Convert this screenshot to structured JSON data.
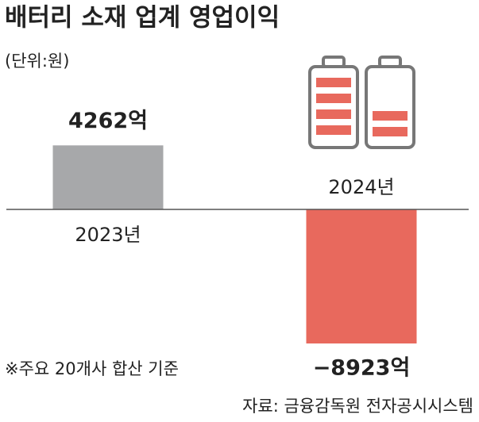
{
  "chart_data": {
    "type": "bar",
    "title": "배터리 소재 업계 영업이익",
    "subtitle": "(단위:원)",
    "categories": [
      "2023년",
      "2024년"
    ],
    "values": [
      4262,
      -8923
    ],
    "value_labels": [
      "4262억",
      "−8923억"
    ],
    "colors": [
      "#a7a8aa",
      "#e8695d"
    ],
    "note": "※주요 20개사 합산 기준",
    "source": "자료: 금융감독원 전자공시시스템"
  }
}
